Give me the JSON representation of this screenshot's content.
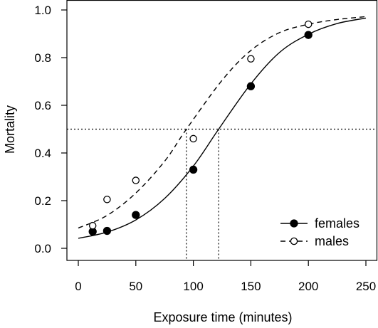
{
  "chart_data": {
    "type": "scatter",
    "xlabel": "Exposure time (minutes)",
    "ylabel": "Mortality",
    "xlim": [
      0,
      250
    ],
    "ylim": [
      0,
      1.0
    ],
    "x_ticks": [
      "0",
      "50",
      "100",
      "150",
      "200",
      "250"
    ],
    "y_ticks": [
      "0.0",
      "0.2",
      "0.4",
      "0.6",
      "0.8",
      "1.0"
    ],
    "grid": false,
    "legend_position": "bottom-right",
    "reference_line_y": 0.5,
    "reference_lines_x": [
      94,
      122
    ],
    "series": [
      {
        "name": "females",
        "marker": "filled-circle",
        "line_style": "solid",
        "points": {
          "x": [
            12.5,
            25,
            50,
            100,
            150,
            200
          ],
          "y": [
            0.07,
            0.073,
            0.14,
            0.33,
            0.68,
            0.895
          ]
        },
        "fit_curve": {
          "x": [
            0,
            25,
            50,
            75,
            100,
            122,
            150,
            175,
            200,
            225,
            250
          ],
          "y": [
            0.042,
            0.068,
            0.119,
            0.209,
            0.345,
            0.5,
            0.69,
            0.822,
            0.898,
            0.943,
            0.966
          ]
        }
      },
      {
        "name": "males",
        "marker": "open-circle",
        "line_style": "dashed",
        "points": {
          "x": [
            12.5,
            25,
            50,
            100,
            150,
            200
          ],
          "y": [
            0.095,
            0.205,
            0.285,
            0.46,
            0.795,
            0.94
          ]
        },
        "fit_curve": {
          "x": [
            0,
            25,
            50,
            75,
            94,
            125,
            150,
            175,
            200,
            225,
            250
          ],
          "y": [
            0.085,
            0.138,
            0.232,
            0.365,
            0.5,
            0.705,
            0.83,
            0.905,
            0.94,
            0.96,
            0.972
          ]
        }
      }
    ]
  }
}
